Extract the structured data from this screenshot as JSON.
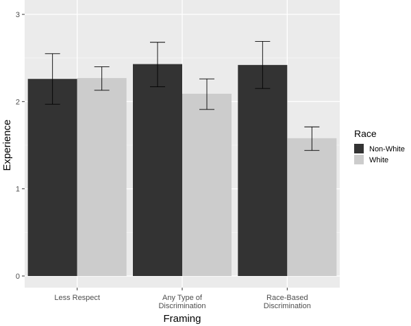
{
  "chart_data": {
    "type": "bar",
    "title": "",
    "xlabel": "Framing",
    "ylabel": "Experience",
    "categories": [
      [
        "Less Respect"
      ],
      [
        "Any Type of",
        "Discrimination"
      ],
      [
        "Race-Based",
        "Discrimination"
      ]
    ],
    "series": [
      {
        "name": "Non-White",
        "color": "#333333",
        "values": [
          2.26,
          2.43,
          2.42
        ],
        "error_low": [
          1.97,
          2.17,
          2.15
        ],
        "error_high": [
          2.55,
          2.68,
          2.69
        ]
      },
      {
        "name": "White",
        "color": "#cccccc",
        "values": [
          2.27,
          2.09,
          1.58
        ],
        "error_low": [
          2.13,
          1.91,
          1.44
        ],
        "error_high": [
          2.4,
          2.26,
          1.71
        ]
      }
    ],
    "ylim": [
      0,
      3
    ],
    "yticks": [
      "0",
      "1",
      "2",
      "3"
    ],
    "grid": true,
    "panel_color": "#ebebeb",
    "legend": {
      "title": "Race",
      "position": "right"
    }
  }
}
